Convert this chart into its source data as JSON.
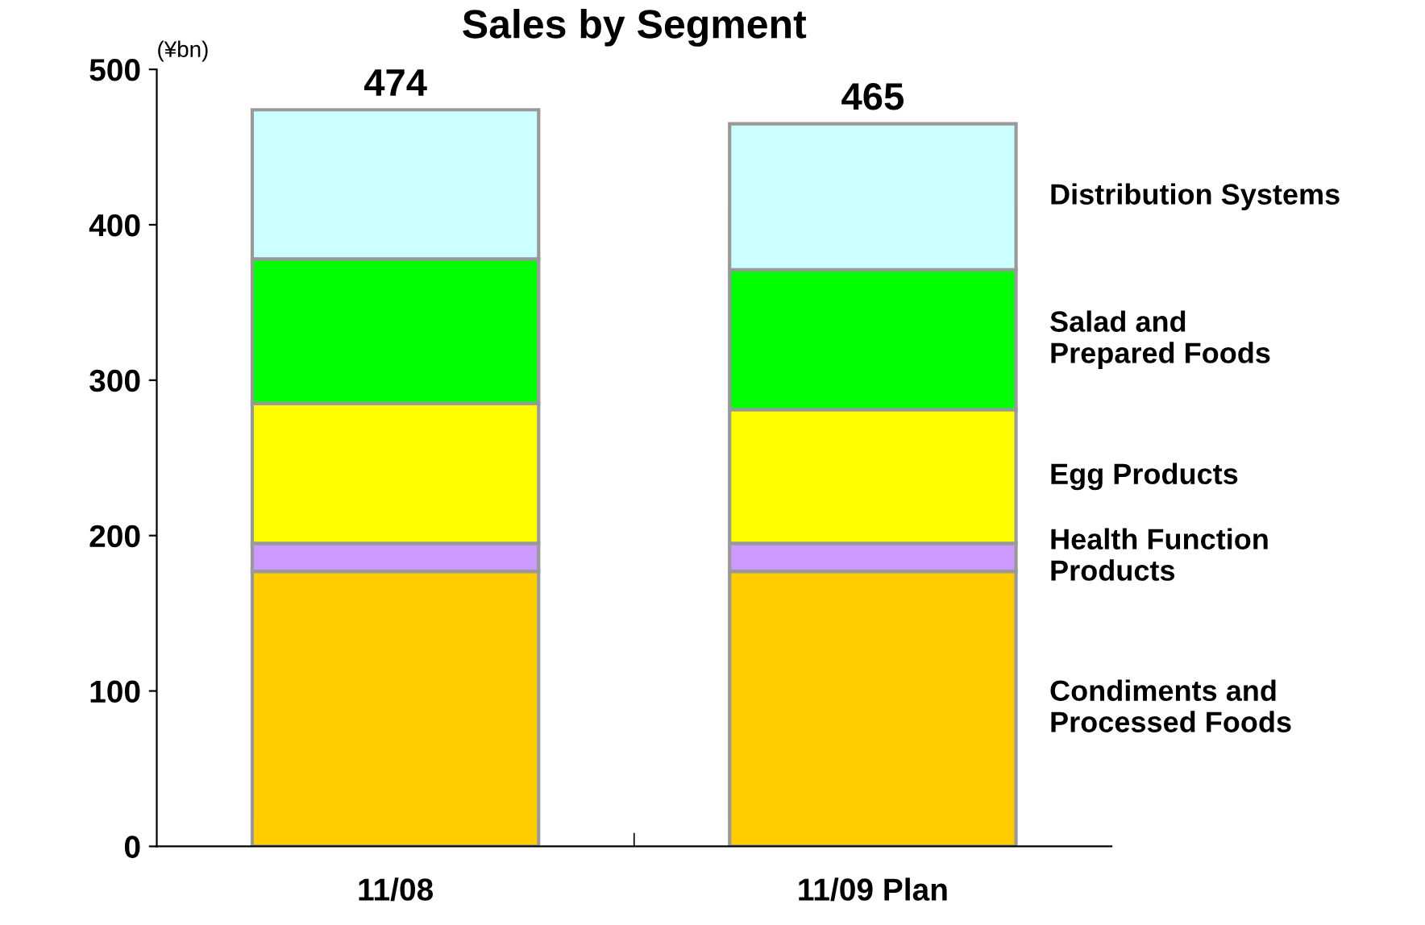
{
  "chart_data": {
    "type": "bar",
    "title": "Sales by Segment",
    "stacked": true,
    "categories": [
      "11/08",
      "11/09 Plan"
    ],
    "series": [
      {
        "name": "Condiments and\nProcessed Foods",
        "color": "#ffcc00",
        "values": [
          177,
          177
        ]
      },
      {
        "name": "Health Function\nProducts",
        "color": "#cc99ff",
        "values": [
          18,
          18
        ]
      },
      {
        "name": "Egg Products",
        "color": "#ffff00",
        "values": [
          90,
          86
        ]
      },
      {
        "name": "Salad and\nPrepared Foods",
        "color": "#00ff00",
        "values": [
          93,
          90
        ]
      },
      {
        "name": "Distribution Systems",
        "color": "#ccffff",
        "values": [
          96,
          94
        ]
      }
    ],
    "totals": [
      "474",
      "465"
    ],
    "ylim": [
      0,
      500
    ],
    "yticks": [
      0,
      100,
      200,
      300,
      400,
      500
    ],
    "grid": false,
    "legend": false,
    "annotations": [
      "(¥bn)"
    ]
  }
}
